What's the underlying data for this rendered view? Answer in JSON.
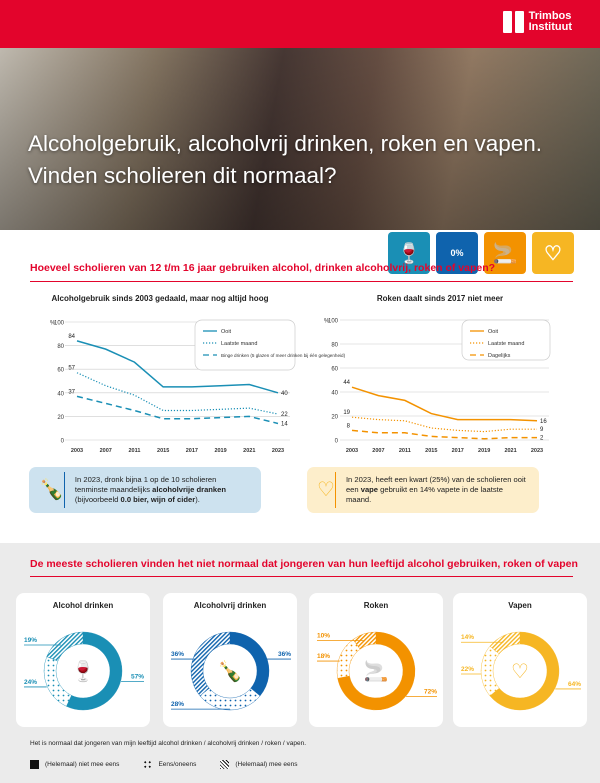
{
  "brand": {
    "name_line1": "Trimbos",
    "name_line2": "Instituut",
    "color": "#e3042c"
  },
  "hero": {
    "title_line1": "Alcoholgebruik, alcoholvrij drinken, roken en vapen.",
    "title_line2": "Vinden scholieren dit normaal?"
  },
  "topic_icons": [
    {
      "name": "wine-bottle-icon",
      "color": "#1a8fb5"
    },
    {
      "name": "zero-percent-bottle-icon",
      "color": "#0f63ad",
      "label": "0%"
    },
    {
      "name": "cigarette-icon",
      "color": "#f39200"
    },
    {
      "name": "vape-icon",
      "color": "#f6b623"
    }
  ],
  "section1": {
    "title": "Hoeveel scholieren van 12 t/m 16 jaar gebruiken alcohol, drinken alcoholvrij, roken of vapen?"
  },
  "section2": {
    "title": "De meeste scholieren vinden het niet normaal dat jongeren van hun leeftijd alcohol gebruiken, roken of vapen"
  },
  "info": {
    "alcoholvrij": {
      "pre": "In 2023, dronk bijna 1 op de 10 scholieren tenminste maandelijks ",
      "bold1": "alcoholvrije dranken",
      "mid": " (bijvoorbeeld ",
      "bold2": "0.0 bier, wijn of cider",
      "post": ").",
      "icon_label": "0%"
    },
    "vape": {
      "pre": "In 2023, heeft een kwart (25%) van de scholieren ooit een ",
      "bold": "vape",
      "post": " gebruikt en 14% vapete in de laatste maand."
    }
  },
  "chart_data": [
    {
      "type": "line",
      "title": "Alcoholgebruik sinds 2003 gedaald, maar nog altijd hoog",
      "ylabel": "%",
      "ylim": [
        0,
        100
      ],
      "yticks": [
        "0",
        "20",
        "40",
        "60",
        "80",
        "100"
      ],
      "grid": true,
      "legend": "top-right",
      "x": [
        "2003",
        "2007",
        "2011",
        "2015",
        "2017",
        "2019",
        "2021",
        "2023"
      ],
      "color": "#1a8fb5",
      "series": [
        {
          "name": "Ooit",
          "style": "solid",
          "values": [
            84,
            77,
            66,
            45,
            45,
            46,
            47,
            40
          ],
          "labels": [
            "84",
            "40"
          ]
        },
        {
          "name": "Laatste maand",
          "style": "dotted",
          "values": [
            57,
            46,
            38,
            25,
            25,
            26,
            27,
            22
          ],
          "labels": [
            "57",
            "22"
          ]
        },
        {
          "name": "Binge drinken (5 glazen of meer drinken bij één gelegenheid)",
          "style": "dashed",
          "values": [
            37,
            31,
            25,
            18,
            18,
            19,
            20,
            14
          ],
          "labels": [
            "37",
            "14"
          ]
        }
      ]
    },
    {
      "type": "line",
      "title": "Roken daalt sinds 2017 niet meer",
      "ylabel": "%",
      "ylim": [
        0,
        100
      ],
      "yticks": [
        "0",
        "20",
        "40",
        "60",
        "80",
        "100"
      ],
      "grid": true,
      "legend": "top-right",
      "x": [
        "2003",
        "2007",
        "2011",
        "2015",
        "2017",
        "2019",
        "2021",
        "2023"
      ],
      "color": "#f39200",
      "series": [
        {
          "name": "Ooit",
          "style": "solid",
          "values": [
            44,
            37,
            33,
            22,
            17,
            17,
            17,
            16
          ],
          "labels": [
            "44",
            "16"
          ]
        },
        {
          "name": "Laatste maand",
          "style": "dotted",
          "values": [
            19,
            17,
            16,
            10,
            8,
            7,
            9,
            9
          ],
          "labels": [
            "19",
            "9"
          ]
        },
        {
          "name": "Dagelijks",
          "style": "dashed",
          "values": [
            8,
            6,
            6,
            3,
            2,
            1,
            2,
            2
          ],
          "labels": [
            "8",
            "2"
          ]
        }
      ]
    },
    {
      "type": "pie",
      "subtype": "donut",
      "categories": [
        "(Helemaal) niet mee eens",
        "Eens/oneens",
        "(Helemaal) mee eens"
      ],
      "charts": [
        {
          "title": "Alcohol drinken",
          "color": "#1a8fb5",
          "values": [
            57,
            24,
            19
          ],
          "labels": [
            "57%",
            "24%",
            "19%"
          ]
        },
        {
          "title": "Alcoholvrij drinken",
          "color": "#0f63ad",
          "values": [
            36,
            28,
            36
          ],
          "labels": [
            "36%",
            "28%",
            "36%"
          ]
        },
        {
          "title": "Roken",
          "color": "#f39200",
          "values": [
            72,
            18,
            10
          ],
          "labels": [
            "72%",
            "18%",
            "10%"
          ]
        },
        {
          "title": "Vapen",
          "color": "#f6b623",
          "values": [
            64,
            22,
            14
          ],
          "labels": [
            "64%",
            "22%",
            "14%"
          ]
        }
      ],
      "note": "Het is normaal dat jongeren van mijn leeftijd alcohol drinken / alcoholvrij drinken / roken / vapen."
    }
  ]
}
